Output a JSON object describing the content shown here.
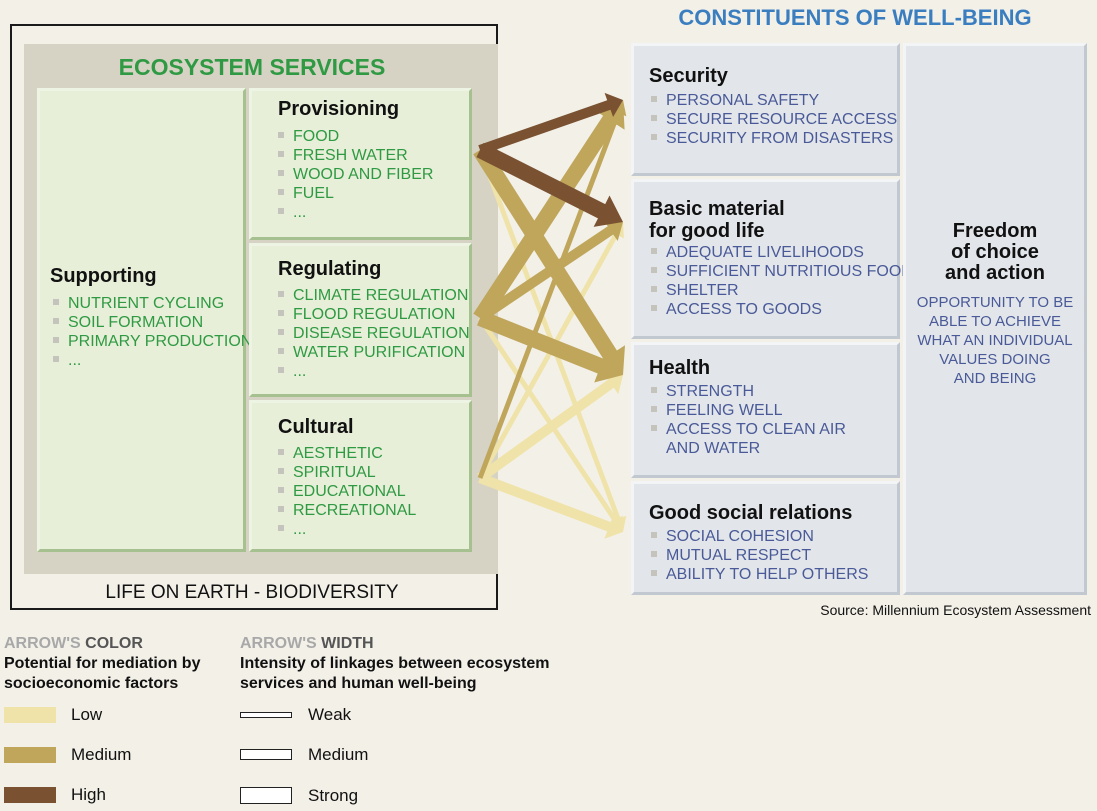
{
  "ecosystem": {
    "title": "ECOSYSTEM SERVICES",
    "supporting": {
      "title": "Supporting",
      "items": [
        "NUTRIENT CYCLING",
        "SOIL FORMATION",
        "PRIMARY PRODUCTION",
        "..."
      ]
    },
    "provisioning": {
      "title": "Provisioning",
      "items": [
        "FOOD",
        "FRESH WATER",
        "WOOD AND FIBER",
        "FUEL",
        "..."
      ]
    },
    "regulating": {
      "title": "Regulating",
      "items": [
        "CLIMATE REGULATION",
        "FLOOD REGULATION",
        "DISEASE REGULATION",
        "WATER PURIFICATION",
        "..."
      ]
    },
    "cultural": {
      "title": "Cultural",
      "items": [
        "AESTHETIC",
        "SPIRITUAL",
        "EDUCATIONAL",
        "RECREATIONAL",
        "..."
      ]
    },
    "footer": "LIFE ON EARTH - BIODIVERSITY"
  },
  "constituents": {
    "title": "CONSTITUENTS OF WELL-BEING",
    "security": {
      "title": "Security",
      "items": [
        "PERSONAL SAFETY",
        "SECURE RESOURCE ACCESS",
        "SECURITY FROM DISASTERS"
      ]
    },
    "basic": {
      "title_line1": "Basic material",
      "title_line2": "for good life",
      "items": [
        "ADEQUATE LIVELIHOODS",
        "SUFFICIENT NUTRITIOUS FOOD",
        "SHELTER",
        "ACCESS TO GOODS"
      ]
    },
    "health": {
      "title": "Health",
      "items": [
        "STRENGTH",
        "FEELING WELL",
        "ACCESS TO CLEAN AIR",
        "AND WATER"
      ]
    },
    "social": {
      "title": "Good social relations",
      "items": [
        "SOCIAL COHESION",
        "MUTUAL RESPECT",
        "ABILITY TO HELP OTHERS"
      ]
    },
    "freedom": {
      "title_lines": [
        "Freedom",
        "of choice",
        "and action"
      ],
      "text_lines": [
        "OPPORTUNITY TO BE",
        "ABLE TO ACHIEVE",
        "WHAT AN INDIVIDUAL",
        "VALUES DOING",
        "AND BEING"
      ]
    }
  },
  "source": "Source: Millennium Ecosystem Assessment",
  "legend": {
    "color": {
      "head_prefix": "ARROW'S ",
      "head_word": "COLOR",
      "sub_line1": "Potential for mediation by",
      "sub_line2": "socioeconomic factors",
      "items": [
        {
          "label": "Low",
          "color": "#efe3a9"
        },
        {
          "label": "Medium",
          "color": "#bfa65b"
        },
        {
          "label": "High",
          "color": "#7a5232"
        }
      ]
    },
    "width": {
      "head_prefix": "ARROW'S ",
      "head_word": "WIDTH",
      "sub_line1": "Intensity of linkages between ecosystem",
      "sub_line2": "services and human well-being",
      "items": [
        {
          "label": "Weak",
          "level": "weak"
        },
        {
          "label": "Medium",
          "level": "medium"
        },
        {
          "label": "Strong",
          "level": "strong"
        }
      ]
    }
  },
  "linkages": [
    {
      "from": "provisioning",
      "to": "security",
      "mediation": "high",
      "intensity": "medium"
    },
    {
      "from": "provisioning",
      "to": "basic",
      "mediation": "high",
      "intensity": "strong"
    },
    {
      "from": "provisioning",
      "to": "health",
      "mediation": "medium",
      "intensity": "strong"
    },
    {
      "from": "provisioning",
      "to": "social",
      "mediation": "low",
      "intensity": "weak"
    },
    {
      "from": "regulating",
      "to": "security",
      "mediation": "medium",
      "intensity": "strong"
    },
    {
      "from": "regulating",
      "to": "basic",
      "mediation": "medium",
      "intensity": "medium"
    },
    {
      "from": "regulating",
      "to": "health",
      "mediation": "medium",
      "intensity": "strong"
    },
    {
      "from": "regulating",
      "to": "social",
      "mediation": "low",
      "intensity": "weak"
    },
    {
      "from": "cultural",
      "to": "security",
      "mediation": "medium",
      "intensity": "weak"
    },
    {
      "from": "cultural",
      "to": "basic",
      "mediation": "low",
      "intensity": "weak"
    },
    {
      "from": "cultural",
      "to": "health",
      "mediation": "low",
      "intensity": "medium"
    },
    {
      "from": "cultural",
      "to": "social",
      "mediation": "low",
      "intensity": "medium"
    }
  ]
}
